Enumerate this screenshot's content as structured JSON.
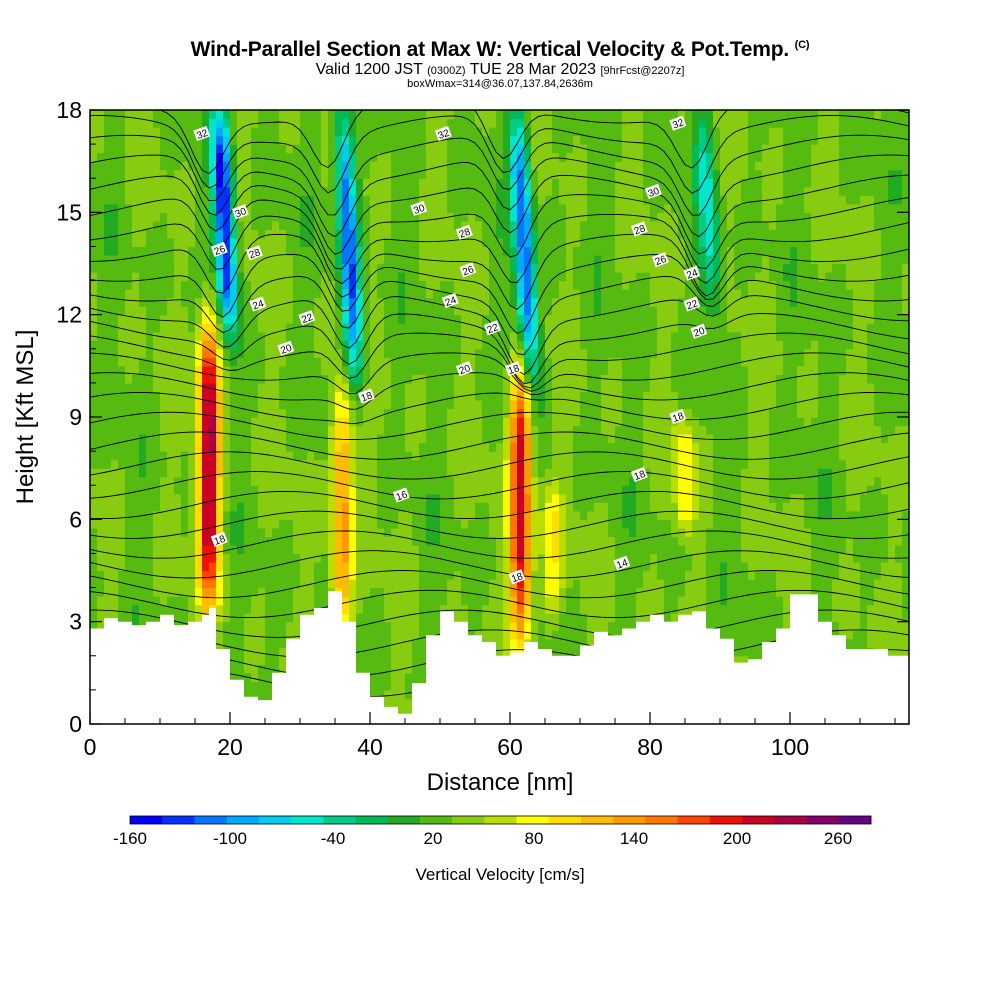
{
  "header": {
    "title": "Wind-Parallel Section at Max W: Vertical Velocity & Pot.Temp.",
    "title_mark": "(C)",
    "valid_prefix": "Valid 1200 JST",
    "valid_utc": "(0300Z)",
    "valid_date": "TUE 28 Mar 2023",
    "forecast": "[9hrFcst@2207z]",
    "boxinfo": "boxWmax=314@36.07,137.84,2636m"
  },
  "chart_data": {
    "type": "heatmap",
    "xlabel": "Distance [nm]",
    "ylabel": "Height [Kft MSL]",
    "xlim": [
      0,
      117
    ],
    "ylim": [
      0,
      18
    ],
    "x_ticks": [
      0,
      20,
      40,
      60,
      80,
      100
    ],
    "y_ticks": [
      0,
      3,
      6,
      9,
      12,
      15,
      18
    ],
    "colorbar": {
      "title": "Vertical Velocity [cm/s]",
      "tick_labels": [
        "-160",
        "-100",
        "-40",
        "20",
        "80",
        "140",
        "200",
        "260"
      ],
      "range": [
        -180,
        280
      ],
      "colors": [
        "#0000ff",
        "#0033ff",
        "#0077ff",
        "#00aaff",
        "#00ccee",
        "#00e6cc",
        "#00cc88",
        "#00bb55",
        "#22aa22",
        "#55bb11",
        "#88cc11",
        "#bbdd00",
        "#ffff00",
        "#ffdd00",
        "#ffbb00",
        "#ff9900",
        "#ff7700",
        "#ff4400",
        "#ee1100",
        "#cc0022",
        "#aa0044",
        "#880066",
        "#660088"
      ]
    },
    "updrafts": [
      {
        "x": 17,
        "y_bottom": 3.5,
        "y_top": 12,
        "w_max": 240
      },
      {
        "x": 36,
        "y_bottom": 2.5,
        "y_top": 10,
        "w_max": 140
      },
      {
        "x": 61.5,
        "y_bottom": 2.3,
        "y_top": 10.5,
        "w_max": 220
      },
      {
        "x": 66,
        "y_bottom": 3,
        "y_top": 7,
        "w_max": 80
      },
      {
        "x": 85,
        "y_bottom": 5.5,
        "y_top": 9,
        "w_max": 80
      }
    ],
    "downdrafts": [
      {
        "x": 20,
        "y_bottom": 11.5,
        "y_top": 18,
        "w_min": -170
      },
      {
        "x": 38,
        "y_bottom": 10,
        "y_top": 18,
        "w_min": -140
      },
      {
        "x": 63,
        "y_bottom": 10,
        "y_top": 18,
        "w_min": -140
      },
      {
        "x": 89,
        "y_bottom": 12,
        "y_top": 18,
        "w_min": -60
      }
    ],
    "terrain": {
      "x": [
        0,
        2,
        4,
        6,
        8,
        10,
        12,
        14,
        16,
        17,
        18,
        20,
        22,
        24,
        26,
        28,
        30,
        32,
        34,
        36,
        38,
        40,
        42,
        44,
        46,
        48,
        50,
        52,
        54,
        56,
        58,
        60,
        62,
        64,
        66,
        68,
        70,
        72,
        74,
        76,
        78,
        80,
        82,
        84,
        86,
        88,
        90,
        92,
        94,
        96,
        98,
        100,
        102,
        104,
        106,
        108,
        110,
        112,
        114,
        117
      ],
      "height": [
        2.8,
        3.1,
        3.0,
        2.9,
        3.0,
        3.2,
        2.9,
        3.0,
        3.2,
        3.4,
        2.2,
        1.3,
        0.8,
        0.7,
        1.5,
        2.5,
        3.2,
        3.4,
        3.9,
        3.0,
        1.5,
        0.8,
        0.5,
        0.3,
        1.2,
        2.6,
        3.3,
        3.0,
        2.6,
        2.4,
        2.0,
        2.1,
        2.4,
        2.2,
        2.0,
        2.0,
        2.3,
        2.7,
        2.6,
        2.8,
        3.0,
        3.2,
        3.0,
        3.2,
        3.3,
        2.8,
        2.5,
        1.8,
        1.9,
        2.4,
        2.8,
        3.8,
        3.8,
        3.0,
        2.6,
        2.2,
        2.2,
        2.2,
        2.0,
        2.0
      ]
    },
    "theta_levels": [
      14,
      16,
      18,
      20,
      22,
      24,
      26,
      28,
      30,
      32
    ],
    "theta_labels": [
      {
        "text": "32",
        "x": 16,
        "y": 17.3
      },
      {
        "text": "30",
        "x": 21.5,
        "y": 15.0
      },
      {
        "text": "26",
        "x": 18.5,
        "y": 13.9
      },
      {
        "text": "28",
        "x": 23.5,
        "y": 13.8
      },
      {
        "text": "24",
        "x": 24,
        "y": 12.3
      },
      {
        "text": "22",
        "x": 31,
        "y": 11.9
      },
      {
        "text": "20",
        "x": 28,
        "y": 11.0
      },
      {
        "text": "18",
        "x": 18.5,
        "y": 5.4
      },
      {
        "text": "18",
        "x": 39.5,
        "y": 9.6
      },
      {
        "text": "16",
        "x": 44.5,
        "y": 6.7
      },
      {
        "text": "32",
        "x": 50.5,
        "y": 17.3
      },
      {
        "text": "30",
        "x": 47,
        "y": 15.1
      },
      {
        "text": "28",
        "x": 53.5,
        "y": 14.4
      },
      {
        "text": "26",
        "x": 54,
        "y": 13.3
      },
      {
        "text": "24",
        "x": 51.5,
        "y": 12.4
      },
      {
        "text": "22",
        "x": 57.5,
        "y": 11.6
      },
      {
        "text": "20",
        "x": 53.5,
        "y": 10.4
      },
      {
        "text": "18",
        "x": 60.5,
        "y": 10.4
      },
      {
        "text": "18",
        "x": 61,
        "y": 4.3
      },
      {
        "text": "32",
        "x": 84,
        "y": 17.6
      },
      {
        "text": "30",
        "x": 80.5,
        "y": 15.6
      },
      {
        "text": "28",
        "x": 78.5,
        "y": 14.5
      },
      {
        "text": "26",
        "x": 81.5,
        "y": 13.6
      },
      {
        "text": "24",
        "x": 86,
        "y": 13.2
      },
      {
        "text": "22",
        "x": 86,
        "y": 12.3
      },
      {
        "text": "20",
        "x": 87,
        "y": 11.5
      },
      {
        "text": "18",
        "x": 84,
        "y": 9.0
      },
      {
        "text": "18",
        "x": 78.5,
        "y": 7.3
      },
      {
        "text": "14",
        "x": 76,
        "y": 4.7
      }
    ]
  }
}
